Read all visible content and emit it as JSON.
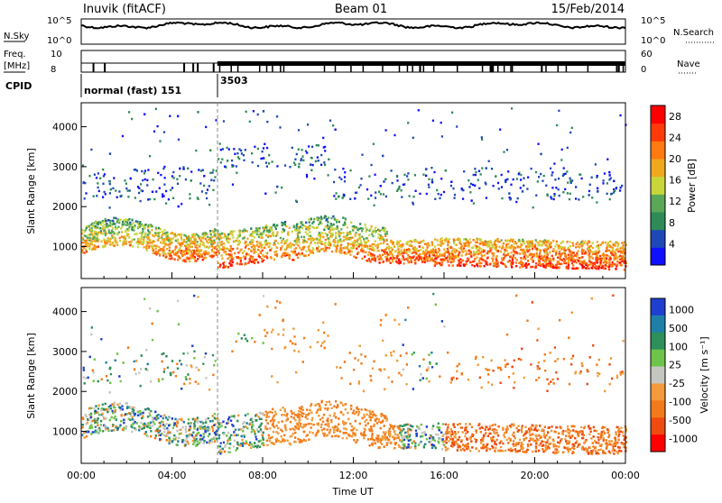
{
  "header": {
    "station": "Inuvik (fitACF)",
    "beam": "Beam 01",
    "date": "15/Feb/2014"
  },
  "noise_panel": {
    "left_label": "N.Sky",
    "right_label": "N.Search",
    "left_ticks": [
      "10^5",
      "10^0"
    ],
    "right_ticks": [
      "10^5",
      "10^0"
    ]
  },
  "freq_panel": {
    "left_label_1": "Freq.",
    "left_label_2": "[MHz]",
    "right_label": "Nave",
    "left_ticks": [
      "10",
      "8"
    ],
    "right_ticks": [
      "60",
      "0"
    ]
  },
  "cpid_panel": {
    "label": "CPID",
    "segments": [
      {
        "text": "normal (fast) 151",
        "start_hour": 0
      },
      {
        "text": "3503",
        "start_hour": 6
      }
    ]
  },
  "colors": {
    "power_scale": [
      "#1010ff",
      "#1d49b8",
      "#2e8a57",
      "#5aa857",
      "#c8d63a",
      "#f0a81e",
      "#ff7a10",
      "#ff3a0a",
      "#ff0000"
    ],
    "velocity_scale": [
      "#1f3fd0",
      "#1f7fa8",
      "#2e8f5a",
      "#6ec44a",
      "#c6c6c0",
      "#f39a3a",
      "#f37a1a",
      "#ef4a10",
      "#ff0000"
    ]
  },
  "chart_data": [
    {
      "type": "heatmap",
      "name": "power",
      "ylabel": "Slant Range [km]",
      "xlabel": "Time UT",
      "x_ticks": [
        "00:00",
        "04:00",
        "08:00",
        "12:00",
        "16:00",
        "20:00",
        "00:00"
      ],
      "y_ticks": [
        1000,
        2000,
        3000,
        4000
      ],
      "ylim": [
        200,
        4600
      ],
      "xlim_hours": [
        0,
        24
      ],
      "colorbar": {
        "label": "Power [dB]",
        "ticks": [
          "4",
          "8",
          "12",
          "16",
          "20",
          "24",
          "28"
        ],
        "range": [
          0,
          30
        ]
      }
    },
    {
      "type": "heatmap",
      "name": "velocity",
      "ylabel": "Slant Range [km]",
      "xlabel": "Time UT",
      "x_ticks": [
        "00:00",
        "04:00",
        "08:00",
        "12:00",
        "16:00",
        "20:00",
        "00:00"
      ],
      "y_ticks": [
        1000,
        2000,
        3000,
        4000
      ],
      "ylim": [
        200,
        4600
      ],
      "xlim_hours": [
        0,
        24
      ],
      "colorbar": {
        "label": "Velocity [m s⁻¹]",
        "ticks": [
          "1000",
          "500",
          "100",
          "25",
          "-25",
          "-100",
          "-500",
          "-1000"
        ]
      }
    }
  ],
  "footer": {
    "xlabel": "Time UT"
  }
}
